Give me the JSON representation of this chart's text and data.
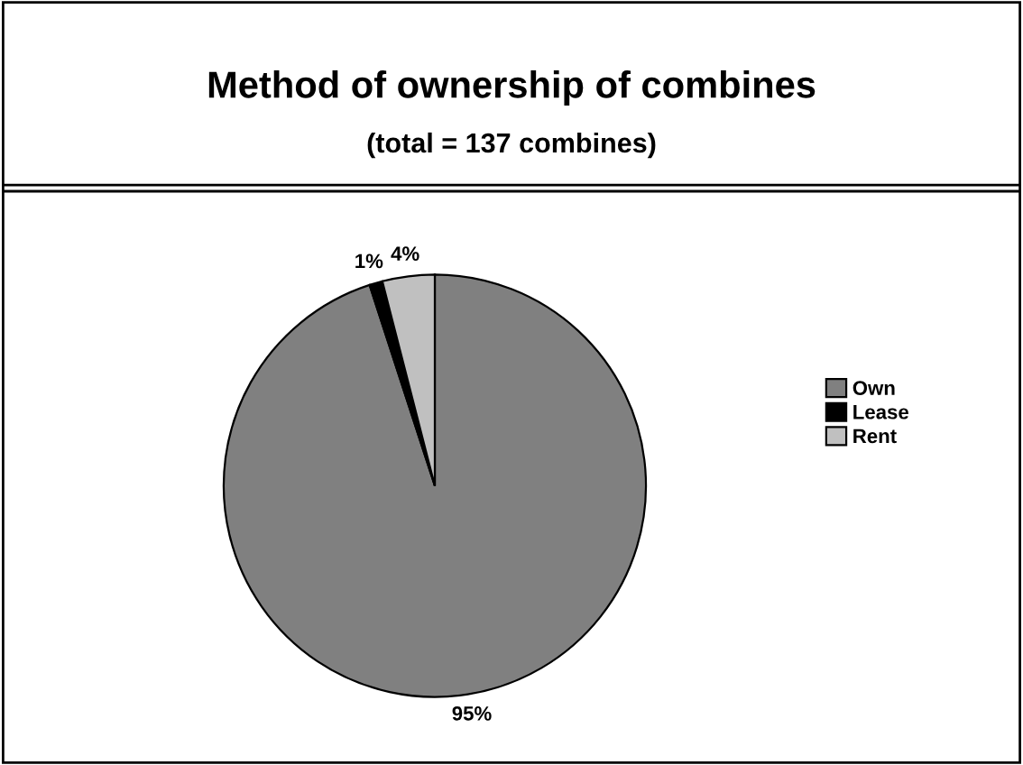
{
  "chart_data": {
    "type": "pie",
    "title": "Method of ownership of combines",
    "subtitle": "(total = 137 combines)",
    "categories": [
      "Own",
      "Lease",
      "Rent"
    ],
    "values": [
      95,
      1,
      4
    ],
    "colors": [
      "#808080",
      "#000000",
      "#c0c0c0"
    ],
    "value_labels": [
      "95%",
      "1%",
      "4%"
    ],
    "legend": "right"
  }
}
